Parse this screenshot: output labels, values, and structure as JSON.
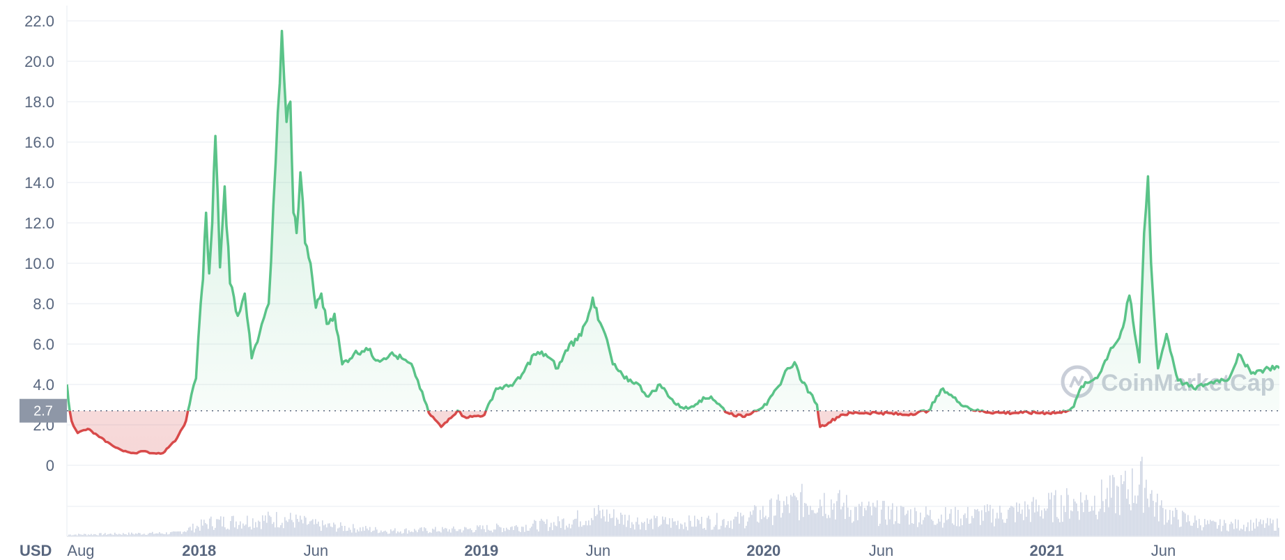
{
  "chart_data": {
    "type": "line",
    "currency_label": "USD",
    "watermark": "CoinMarketCap",
    "reference_value": 2.7,
    "reference_label": "2.7",
    "ylim": [
      0,
      22
    ],
    "y_ticks": [
      "0",
      "2.0",
      "4.0",
      "6.0",
      "8.0",
      "10.0",
      "12.0",
      "14.0",
      "16.0",
      "18.0",
      "20.0",
      "22.0"
    ],
    "xlim": [
      "2017-07-14",
      "2021-10-29"
    ],
    "x_ticks": [
      {
        "date": "2017-08-01",
        "label": "Aug",
        "major": false
      },
      {
        "date": "2018-01-01",
        "label": "2018",
        "major": true
      },
      {
        "date": "2018-06-01",
        "label": "Jun",
        "major": false
      },
      {
        "date": "2019-01-01",
        "label": "2019",
        "major": true
      },
      {
        "date": "2019-06-01",
        "label": "Jun",
        "major": false
      },
      {
        "date": "2020-01-01",
        "label": "2020",
        "major": true
      },
      {
        "date": "2020-06-01",
        "label": "Jun",
        "major": false
      },
      {
        "date": "2021-01-01",
        "label": "2021",
        "major": true
      },
      {
        "date": "2021-06-01",
        "label": "Jun",
        "major": false
      }
    ],
    "colors": {
      "above": "#5ac388",
      "below": "#d84a4a",
      "grid": "#eff2f5",
      "axis_text": "#58667e",
      "volume": "#cfd6e4",
      "ref_box": "#8e97a7"
    },
    "series": [
      {
        "x": [
          "2017-07-14",
          "2017-07-16",
          "2017-07-20",
          "2017-07-28",
          "2017-08-10",
          "2017-08-25",
          "2017-09-10",
          "2017-09-25",
          "2017-10-10",
          "2017-10-20",
          "2017-11-01",
          "2017-11-15",
          "2017-11-25",
          "2017-12-01",
          "2017-12-08",
          "2017-12-15",
          "2017-12-22",
          "2017-12-28",
          "2018-01-03",
          "2018-01-06",
          "2018-01-10",
          "2018-01-14",
          "2018-01-18",
          "2018-01-22",
          "2018-01-28",
          "2018-02-03",
          "2018-02-10",
          "2018-02-20",
          "2018-03-01",
          "2018-03-10",
          "2018-03-20",
          "2018-04-01",
          "2018-04-10",
          "2018-04-18",
          "2018-04-24",
          "2018-04-29",
          "2018-05-03",
          "2018-05-07",
          "2018-05-12",
          "2018-05-18",
          "2018-05-25",
          "2018-06-01",
          "2018-06-08",
          "2018-06-15",
          "2018-06-25",
          "2018-07-05",
          "2018-07-20",
          "2018-08-05",
          "2018-08-20",
          "2018-09-05",
          "2018-09-20",
          "2018-10-05",
          "2018-10-25",
          "2018-11-10",
          "2018-11-20",
          "2018-12-01",
          "2018-12-10",
          "2018-12-20",
          "2019-01-05",
          "2019-01-20",
          "2019-02-05",
          "2019-02-20",
          "2019-03-10",
          "2019-03-25",
          "2019-04-10",
          "2019-04-25",
          "2019-05-05",
          "2019-05-15",
          "2019-05-25",
          "2019-06-01",
          "2019-06-10",
          "2019-06-20",
          "2019-07-05",
          "2019-07-20",
          "2019-08-05",
          "2019-08-20",
          "2019-09-10",
          "2019-09-25",
          "2019-10-10",
          "2019-10-25",
          "2019-11-15",
          "2019-12-05",
          "2019-12-20",
          "2020-01-05",
          "2020-01-20",
          "2020-02-01",
          "2020-02-10",
          "2020-02-20",
          "2020-03-01",
          "2020-03-10",
          "2020-03-14",
          "2020-03-25",
          "2020-04-10",
          "2020-05-01",
          "2020-06-01",
          "2020-07-01",
          "2020-08-01",
          "2020-08-20",
          "2020-09-10",
          "2020-10-01",
          "2020-11-01",
          "2020-12-01",
          "2021-01-01",
          "2021-01-20",
          "2021-02-05",
          "2021-02-15",
          "2021-02-25",
          "2021-03-10",
          "2021-03-25",
          "2021-04-05",
          "2021-04-12",
          "2021-04-18",
          "2021-04-25",
          "2021-05-01",
          "2021-05-07",
          "2021-05-12",
          "2021-05-16",
          "2021-05-20",
          "2021-05-25",
          "2021-06-05",
          "2021-06-20",
          "2021-07-10",
          "2021-07-25",
          "2021-08-10",
          "2021-08-25",
          "2021-09-06",
          "2021-09-15",
          "2021-09-25",
          "2021-10-05",
          "2021-10-15",
          "2021-10-25",
          "2021-10-29"
        ],
        "values": [
          4.0,
          3.2,
          2.2,
          1.6,
          1.8,
          1.4,
          1.0,
          0.7,
          0.6,
          0.7,
          0.6,
          0.6,
          1.0,
          1.2,
          1.7,
          2.2,
          3.5,
          4.3,
          8.0,
          9.2,
          12.5,
          9.5,
          12.0,
          16.3,
          9.8,
          13.8,
          9.0,
          7.4,
          8.5,
          5.3,
          6.5,
          8.0,
          15.0,
          21.5,
          17.0,
          18.0,
          12.5,
          11.5,
          14.5,
          11.0,
          10.0,
          7.8,
          8.5,
          7.0,
          7.5,
          5.0,
          5.5,
          5.8,
          5.2,
          5.5,
          5.3,
          4.8,
          2.6,
          1.9,
          2.3,
          2.7,
          2.4,
          2.4,
          2.5,
          3.8,
          3.9,
          4.3,
          5.5,
          5.5,
          4.8,
          6.0,
          6.2,
          7.0,
          8.3,
          7.2,
          6.5,
          5.0,
          4.3,
          4.1,
          3.4,
          4.0,
          3.0,
          2.8,
          3.2,
          3.4,
          2.6,
          2.4,
          2.7,
          3.0,
          3.9,
          4.8,
          5.1,
          4.1,
          3.6,
          3.0,
          1.9,
          2.1,
          2.5,
          2.6,
          2.6,
          2.5,
          2.7,
          3.8,
          3.1,
          2.7,
          2.6,
          2.6,
          2.6,
          2.6,
          2.9,
          3.9,
          4.1,
          4.5,
          5.8,
          6.3,
          7.2,
          8.4,
          6.5,
          5.1,
          11.5,
          14.3,
          10.0,
          7.5,
          4.8,
          6.5,
          4.2,
          3.8,
          4.0,
          4.2,
          4.3,
          5.5,
          4.9,
          4.6,
          4.7,
          4.8,
          4.9,
          4.8
        ]
      }
    ],
    "volume": {
      "x": [
        "2017-07-14",
        "2017-12-01",
        "2018-01-15",
        "2018-04-20",
        "2018-06-01",
        "2018-09-01",
        "2018-12-01",
        "2019-02-01",
        "2019-04-01",
        "2019-06-01",
        "2019-08-01",
        "2019-10-01",
        "2019-12-01",
        "2020-02-01",
        "2020-03-10",
        "2020-05-01",
        "2020-07-01",
        "2020-09-01",
        "2020-11-01",
        "2020-12-20",
        "2021-02-01",
        "2021-03-01",
        "2021-04-01",
        "2021-05-10",
        "2021-05-20",
        "2021-06-15",
        "2021-08-01",
        "2021-10-29"
      ],
      "values": [
        0.03,
        0.06,
        0.25,
        0.32,
        0.2,
        0.1,
        0.12,
        0.16,
        0.22,
        0.4,
        0.25,
        0.25,
        0.3,
        0.55,
        0.7,
        0.45,
        0.4,
        0.35,
        0.4,
        0.5,
        0.6,
        0.65,
        0.75,
        1.0,
        0.55,
        0.35,
        0.2,
        0.22
      ]
    }
  }
}
